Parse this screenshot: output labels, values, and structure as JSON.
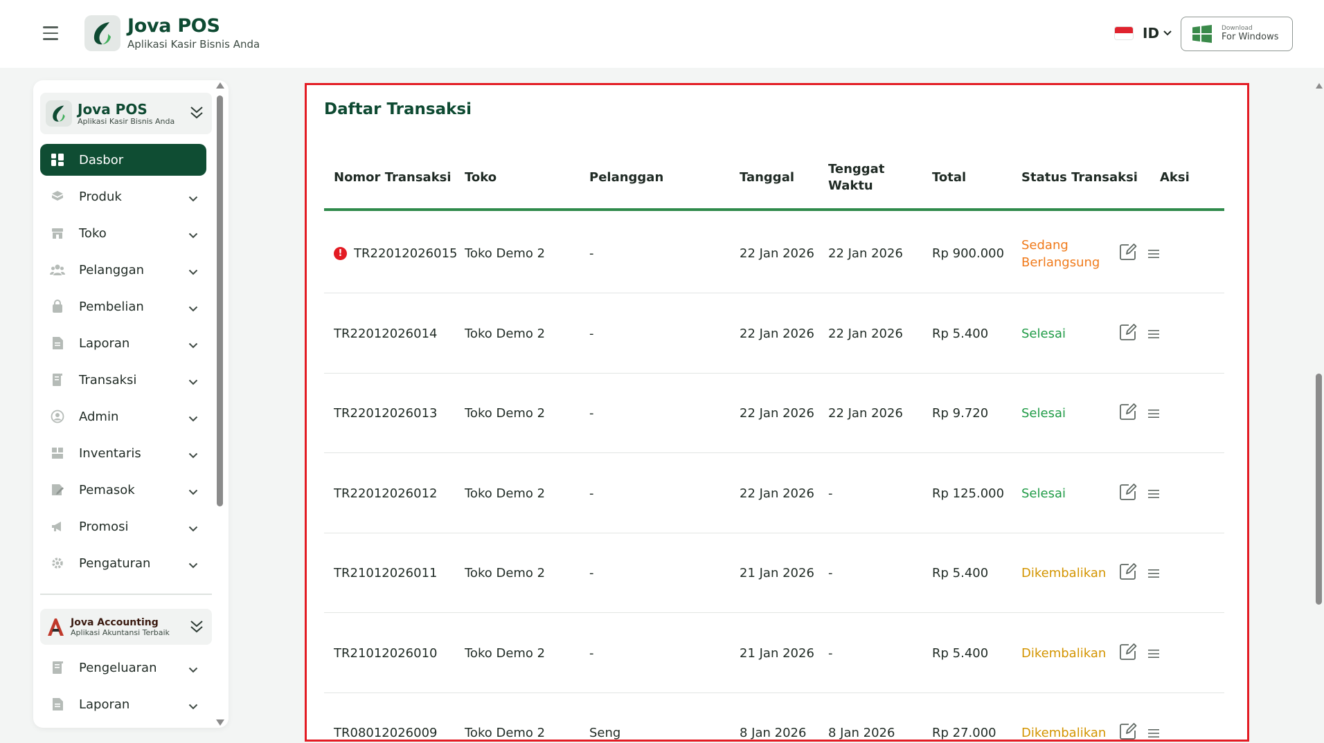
{
  "header": {
    "brand_name": "Jova POS",
    "brand_tagline": "Aplikasi Kasir Bisnis Anda",
    "language": "ID",
    "download_small": "Download",
    "download_big": "For Windows"
  },
  "sidebar": {
    "brand_name": "Jova POS",
    "brand_tagline": "Aplikasi Kasir Bisnis Anda",
    "items": [
      {
        "label": "Dasbor",
        "icon": "dashboard-icon",
        "active": true
      },
      {
        "label": "Produk",
        "icon": "box-icon"
      },
      {
        "label": "Toko",
        "icon": "store-icon"
      },
      {
        "label": "Pelanggan",
        "icon": "users-icon"
      },
      {
        "label": "Pembelian",
        "icon": "bag-icon"
      },
      {
        "label": "Laporan",
        "icon": "document-icon"
      },
      {
        "label": "Transaksi",
        "icon": "receipt-icon"
      },
      {
        "label": "Admin",
        "icon": "user-circle-icon"
      },
      {
        "label": "Inventaris",
        "icon": "inventory-icon"
      },
      {
        "label": "Pemasok",
        "icon": "supplier-icon"
      },
      {
        "label": "Promosi",
        "icon": "megaphone-icon"
      },
      {
        "label": "Pengaturan",
        "icon": "gear-icon"
      }
    ],
    "accounting": {
      "brand_name": "Jova Accounting",
      "brand_tagline": "Aplikasi Akuntansi Terbaik",
      "items": [
        {
          "label": "Pengeluaran",
          "icon": "expense-icon"
        },
        {
          "label": "Laporan",
          "icon": "document-icon"
        }
      ]
    }
  },
  "colors": {
    "brand_green": "#0e4a32",
    "active_bg": "#0f4d33",
    "header_rule": "#2f8a4b",
    "status_in_progress": "#f07a1a",
    "status_done": "#1f9b46",
    "status_returned": "#d39400",
    "highlight_border": "#e31b23"
  },
  "table": {
    "title": "Daftar Transaksi",
    "columns": [
      {
        "label": "Nomor Transaksi"
      },
      {
        "label": "Toko"
      },
      {
        "label": "Pelanggan"
      },
      {
        "label": "Tanggal"
      },
      {
        "label": "Tenggat Waktu"
      },
      {
        "label": "Total"
      },
      {
        "label": "Status Transaksi"
      },
      {
        "label": "Aksi"
      }
    ],
    "rows": [
      {
        "id": "TR22012026015",
        "store": "Toko Demo 2",
        "customer": "-",
        "date": "22 Jan 2026",
        "due": "22 Jan 2026",
        "total": "Rp 900.000",
        "status": "Sedang Berlangsung",
        "status_type": "in_progress",
        "warning": true
      },
      {
        "id": "TR22012026014",
        "store": "Toko Demo 2",
        "customer": "-",
        "date": "22 Jan 2026",
        "due": "22 Jan 2026",
        "total": "Rp 5.400",
        "status": "Selesai",
        "status_type": "done"
      },
      {
        "id": "TR22012026013",
        "store": "Toko Demo 2",
        "customer": "-",
        "date": "22 Jan 2026",
        "due": "22 Jan 2026",
        "total": "Rp 9.720",
        "status": "Selesai",
        "status_type": "done"
      },
      {
        "id": "TR22012026012",
        "store": "Toko Demo 2",
        "customer": "-",
        "date": "22 Jan 2026",
        "due": "-",
        "total": "Rp 125.000",
        "status": "Selesai",
        "status_type": "done"
      },
      {
        "id": "TR21012026011",
        "store": "Toko Demo 2",
        "customer": "-",
        "date": "21 Jan 2026",
        "due": "-",
        "total": "Rp 5.400",
        "status": "Dikembalikan",
        "status_type": "returned"
      },
      {
        "id": "TR21012026010",
        "store": "Toko Demo 2",
        "customer": "-",
        "date": "21 Jan 2026",
        "due": "-",
        "total": "Rp 5.400",
        "status": "Dikembalikan",
        "status_type": "returned"
      },
      {
        "id": "TR08012026009",
        "store": "Toko Demo 2",
        "customer": "Seng",
        "date": "8 Jan 2026",
        "due": "8 Jan 2026",
        "total": "Rp 27.000",
        "status": "Dikembalikan",
        "status_type": "returned"
      }
    ]
  }
}
